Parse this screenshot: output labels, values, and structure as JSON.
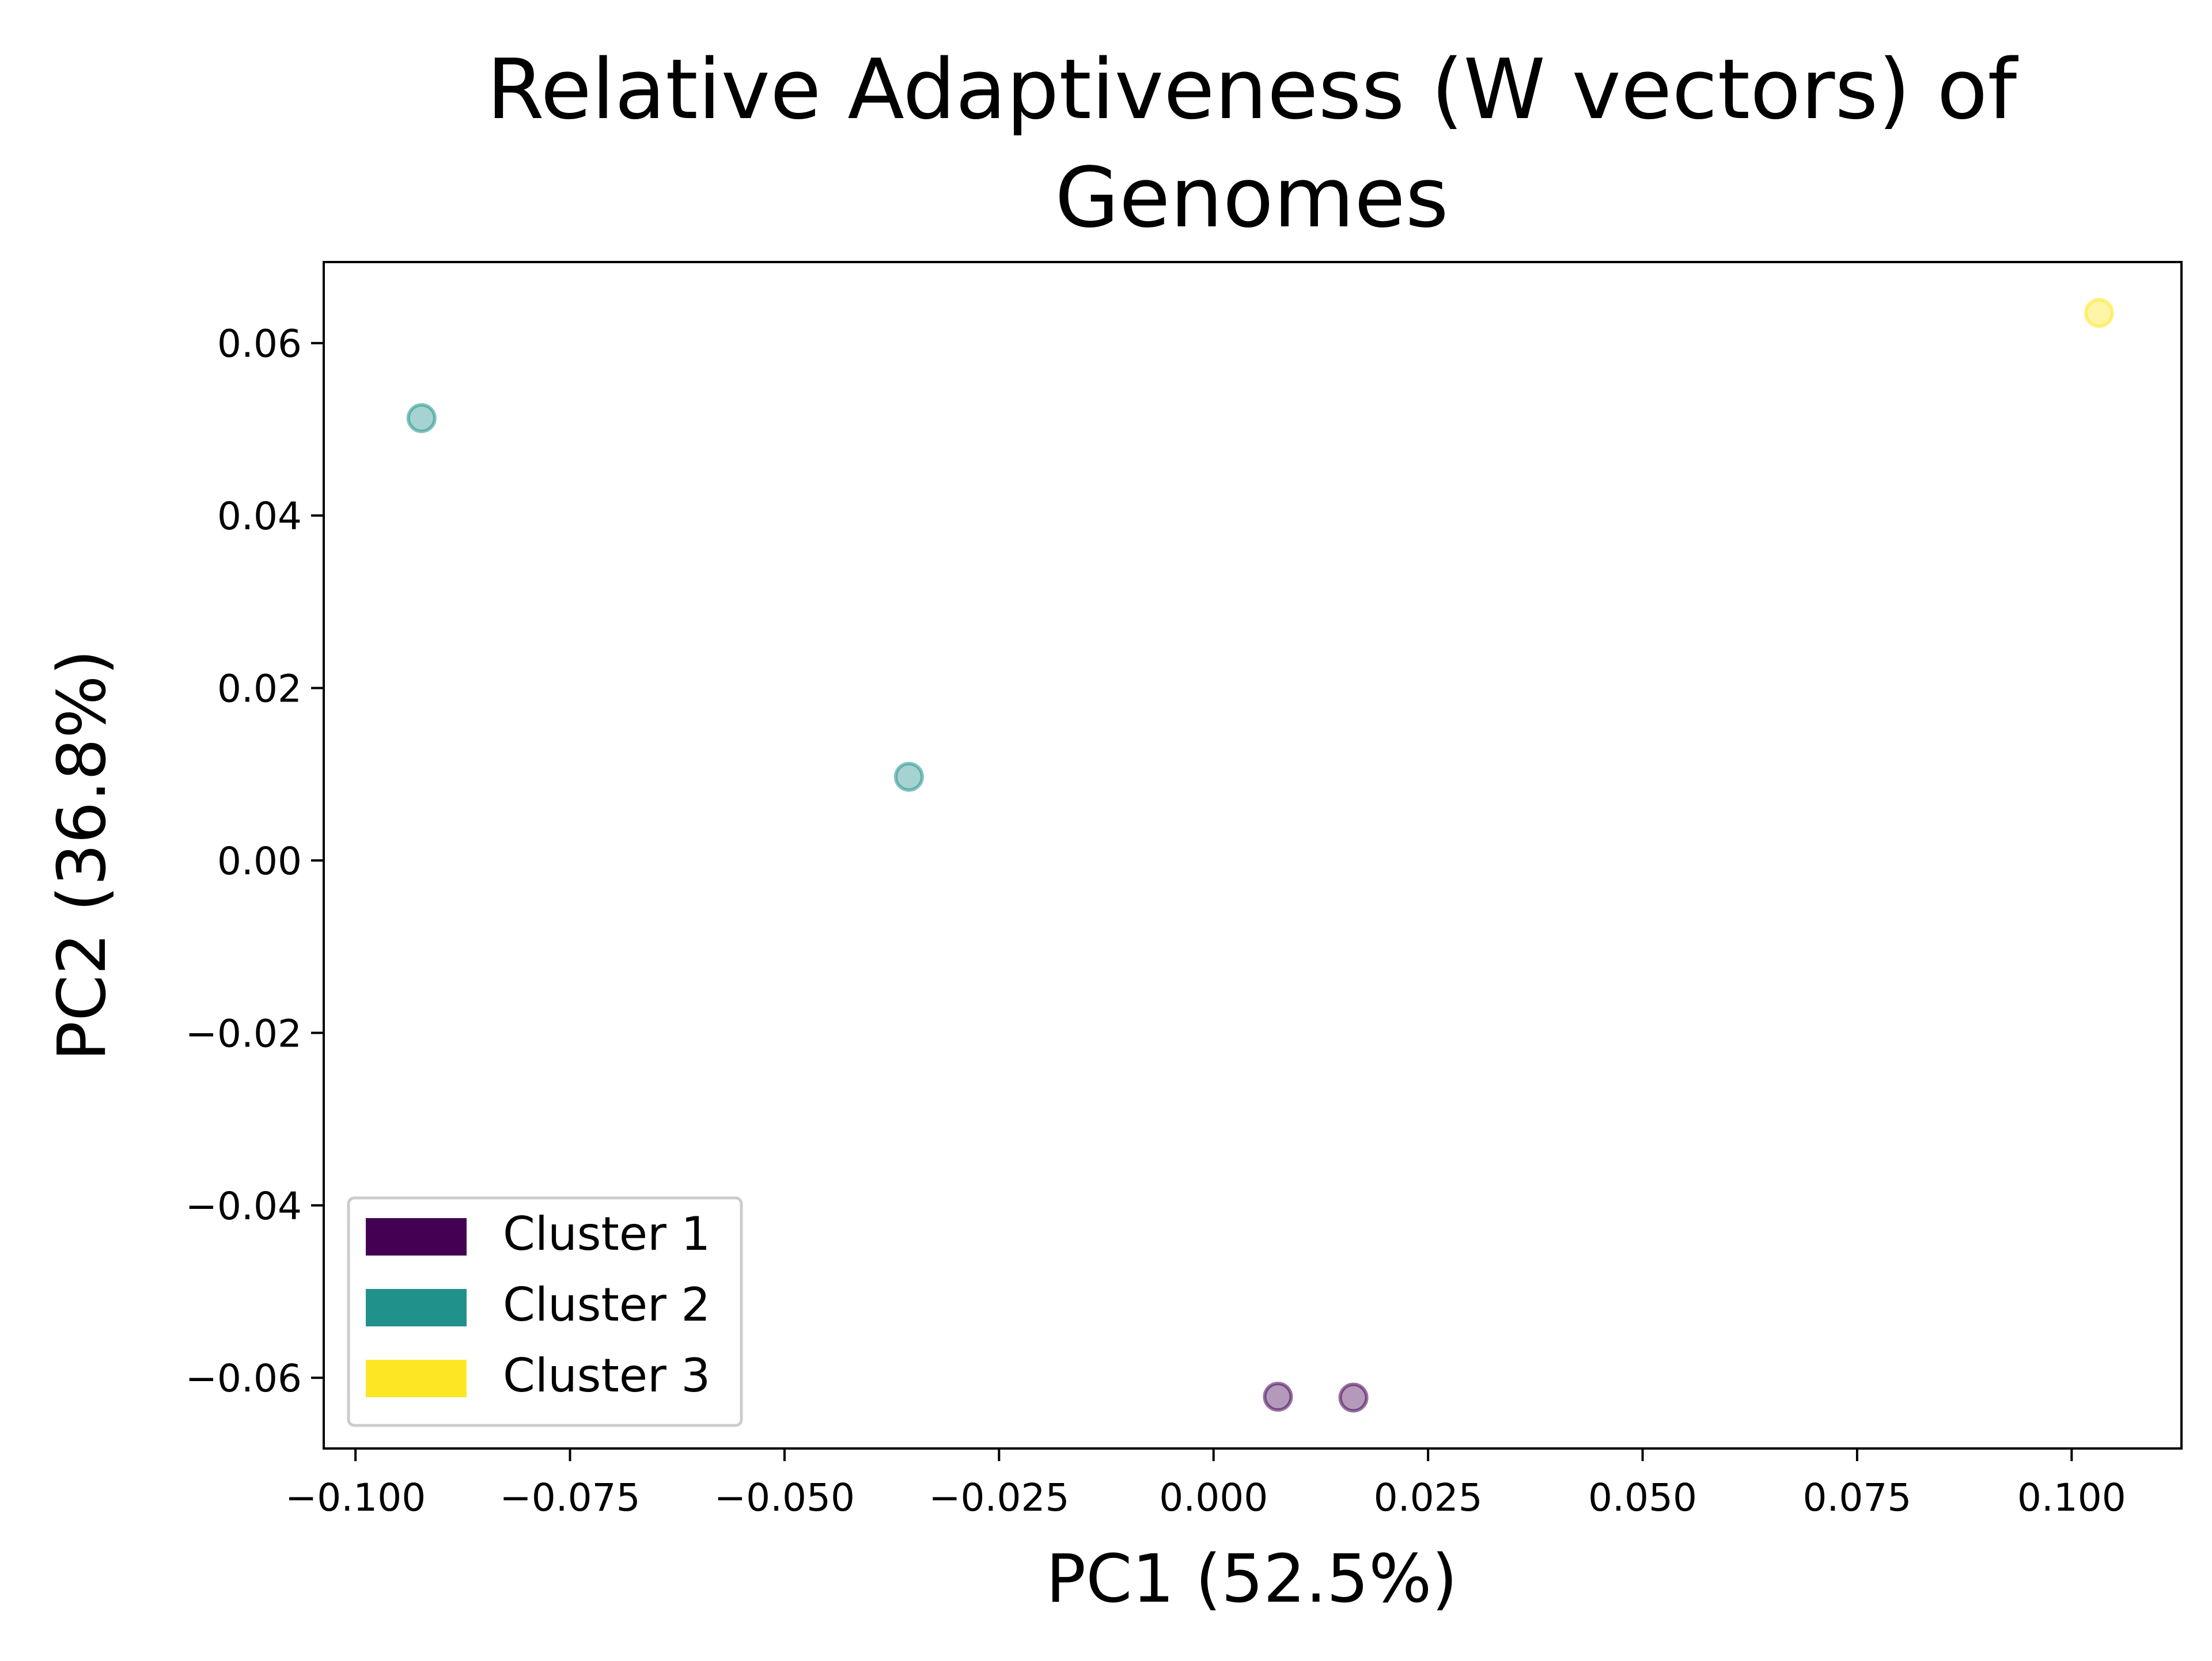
{
  "chart_data": {
    "type": "scatter",
    "title_lines": [
      "Relative Adaptiveness (W vectors) of",
      "Genomes"
    ],
    "xlabel": "PC1 (52.5%)",
    "ylabel": "PC2 (36.8%)",
    "xlim": [
      -0.1037,
      0.1128
    ],
    "ylim": [
      -0.0682,
      0.0694
    ],
    "x_ticks": [
      -0.1,
      -0.075,
      -0.05,
      -0.025,
      0.0,
      0.025,
      0.05,
      0.075,
      0.1
    ],
    "x_tick_labels": [
      "−0.100",
      "−0.075",
      "−0.050",
      "−0.025",
      "0.000",
      "0.025",
      "0.050",
      "0.075",
      "0.100"
    ],
    "y_ticks": [
      -0.06,
      -0.04,
      -0.02,
      0.0,
      0.02,
      0.04,
      0.06
    ],
    "y_tick_labels": [
      "−0.06",
      "−0.04",
      "−0.02",
      "0.00",
      "0.02",
      "0.04",
      "0.06"
    ],
    "grid": false,
    "legend_position": "lower-left",
    "series": [
      {
        "name": "Cluster 1",
        "color": "#440154",
        "points": [
          {
            "x": 0.0075,
            "y": -0.0622
          },
          {
            "x": 0.0163,
            "y": -0.0623
          }
        ]
      },
      {
        "name": "Cluster 2",
        "color": "#21918c",
        "points": [
          {
            "x": -0.0923,
            "y": 0.0513
          },
          {
            "x": -0.0355,
            "y": 0.0097
          }
        ]
      },
      {
        "name": "Cluster 3",
        "color": "#fde725",
        "points": [
          {
            "x": 0.1032,
            "y": 0.0635
          }
        ]
      }
    ]
  }
}
